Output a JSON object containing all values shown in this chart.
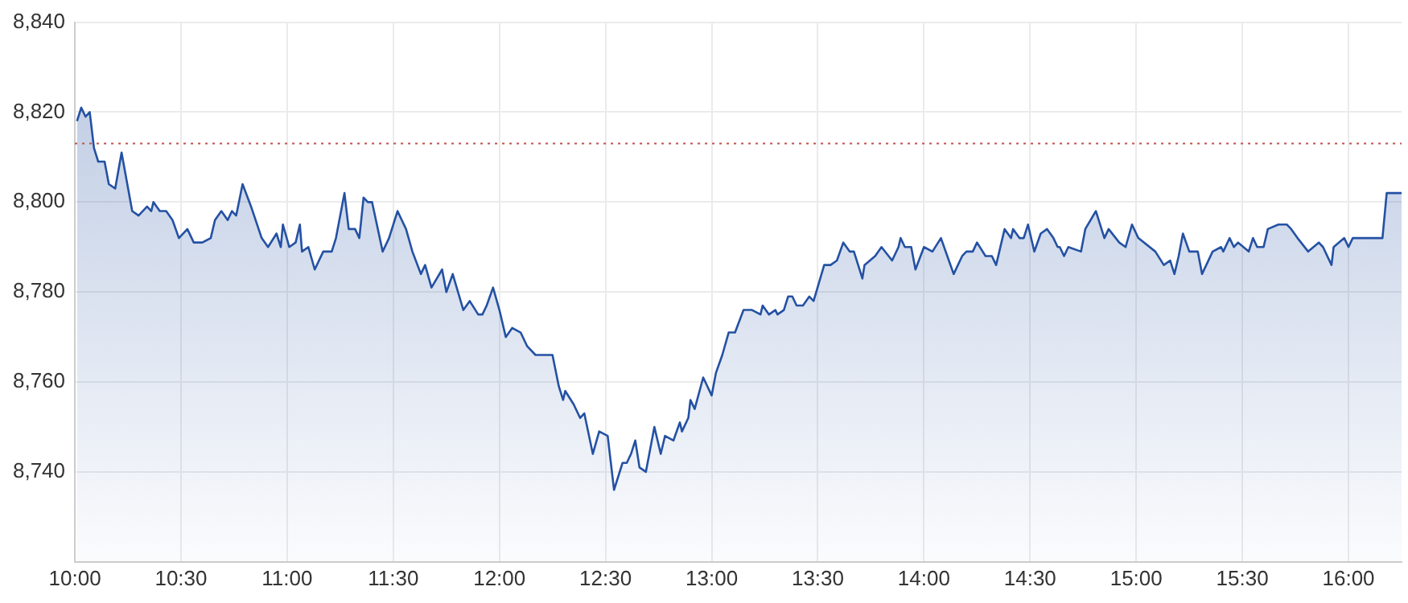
{
  "chart_data": {
    "type": "area",
    "x": [
      10.01,
      10.03,
      10.05,
      10.07,
      10.09,
      10.11,
      10.14,
      10.16,
      10.19,
      10.22,
      10.27,
      10.3,
      10.34,
      10.36,
      10.37,
      10.4,
      10.43,
      10.46,
      10.49,
      10.53,
      10.56,
      10.6,
      10.64,
      10.66,
      10.69,
      10.72,
      10.74,
      10.76,
      10.79,
      10.83,
      10.88,
      10.91,
      10.95,
      10.97,
      10.98,
      11.01,
      11.04,
      11.06,
      11.07,
      11.1,
      11.13,
      11.17,
      11.21,
      11.23,
      11.27,
      11.29,
      11.32,
      11.34,
      11.36,
      11.38,
      11.4,
      11.45,
      11.48,
      11.52,
      11.56,
      11.59,
      11.63,
      11.65,
      11.68,
      11.73,
      11.75,
      11.78,
      11.83,
      11.86,
      11.9,
      11.92,
      11.94,
      11.97,
      12.0,
      12.03,
      12.06,
      12.1,
      12.13,
      12.17,
      12.22,
      12.25,
      12.28,
      12.3,
      12.31,
      12.35,
      12.38,
      12.4,
      12.44,
      12.47,
      12.51,
      12.54,
      12.58,
      12.6,
      12.62,
      12.64,
      12.66,
      12.69,
      12.73,
      12.76,
      12.78,
      12.82,
      12.85,
      12.86,
      12.89,
      12.9,
      12.92,
      12.96,
      13.0,
      13.02,
      13.05,
      13.08,
      13.11,
      13.15,
      13.19,
      13.23,
      13.24,
      13.27,
      13.3,
      13.31,
      13.34,
      13.36,
      13.38,
      13.4,
      13.42,
      13.43,
      13.46,
      13.48,
      13.53,
      13.56,
      13.59,
      13.62,
      13.65,
      13.67,
      13.71,
      13.72,
      13.77,
      13.8,
      13.85,
      13.88,
      13.89,
      13.91,
      13.94,
      13.96,
      14.0,
      14.04,
      14.08,
      14.11,
      14.14,
      14.18,
      14.2,
      14.23,
      14.25,
      14.29,
      14.32,
      14.34,
      14.38,
      14.41,
      14.42,
      14.45,
      14.47,
      14.49,
      14.52,
      14.55,
      14.58,
      14.61,
      14.63,
      14.64,
      14.66,
      14.68,
      14.74,
      14.76,
      14.81,
      14.85,
      14.87,
      14.92,
      14.95,
      14.98,
      15.01,
      15.09,
      15.13,
      15.16,
      15.18,
      15.2,
      15.22,
      15.25,
      15.29,
      15.31,
      15.36,
      15.4,
      15.41,
      15.44,
      15.46,
      15.48,
      15.53,
      15.55,
      15.57,
      15.6,
      15.62,
      15.67,
      15.71,
      15.73,
      15.76,
      15.81,
      15.86,
      15.88,
      15.92,
      15.93,
      15.98,
      16.0,
      16.02,
      16.16,
      16.18,
      16.25
    ],
    "series": [
      {
        "color": "#2451a3",
        "values": [
          8818,
          8821,
          8819,
          8820,
          8812,
          8809,
          8809,
          8804,
          8803,
          8811,
          8798,
          8797,
          8799,
          8798,
          8800,
          8798,
          8798,
          8796,
          8792,
          8794,
          8791,
          8791,
          8792,
          8796,
          8798,
          8796,
          8798,
          8797,
          8804,
          8799,
          8792,
          8790,
          8793,
          8790,
          8795,
          8790,
          8791,
          8795,
          8789,
          8790,
          8785,
          8789,
          8789,
          8792,
          8802,
          8794,
          8794,
          8792,
          8801,
          8800,
          8800,
          8789,
          8792,
          8798,
          8794,
          8789,
          8784,
          8786,
          8781,
          8785,
          8780,
          8784,
          8776,
          8778,
          8775,
          8775,
          8777,
          8781,
          8776,
          8770,
          8772,
          8771,
          8768,
          8766,
          8766,
          8766,
          8759,
          8756,
          8758,
          8755,
          8752,
          8753,
          8744,
          8749,
          8748,
          8736,
          8742,
          8742,
          8744,
          8747,
          8741,
          8740,
          8750,
          8744,
          8748,
          8747,
          8751,
          8749,
          8752,
          8756,
          8754,
          8761,
          8757,
          8762,
          8766,
          8771,
          8771,
          8776,
          8776,
          8775,
          8777,
          8775,
          8776,
          8775,
          8776,
          8779,
          8779,
          8777,
          8777,
          8777,
          8779,
          8778,
          8786,
          8786,
          8787,
          8791,
          8789,
          8789,
          8783,
          8786,
          8788,
          8790,
          8787,
          8790,
          8792,
          8790,
          8790,
          8785,
          8790,
          8789,
          8792,
          8788,
          8784,
          8788,
          8789,
          8789,
          8791,
          8788,
          8788,
          8786,
          8794,
          8792,
          8794,
          8792,
          8792,
          8795,
          8789,
          8793,
          8794,
          8792,
          8790,
          8790,
          8788,
          8790,
          8789,
          8794,
          8798,
          8792,
          8794,
          8791,
          8790,
          8795,
          8792,
          8789,
          8786,
          8787,
          8784,
          8788,
          8793,
          8789,
          8789,
          8784,
          8789,
          8790,
          8789,
          8792,
          8790,
          8791,
          8789,
          8792,
          8790,
          8790,
          8794,
          8795,
          8795,
          8794,
          8792,
          8789,
          8791,
          8790,
          8786,
          8790,
          8792,
          8790,
          8792,
          8792,
          8802,
          8802
        ]
      }
    ],
    "xlim": [
      10,
      16.25
    ],
    "xticks": [
      {
        "value": 10,
        "label": "10:00"
      },
      {
        "value": 10.5,
        "label": "10:30"
      },
      {
        "value": 11,
        "label": "11:00"
      },
      {
        "value": 11.5,
        "label": "11:30"
      },
      {
        "value": 12,
        "label": "12:00"
      },
      {
        "value": 12.5,
        "label": "12:30"
      },
      {
        "value": 13,
        "label": "13:00"
      },
      {
        "value": 13.5,
        "label": "13:30"
      },
      {
        "value": 14,
        "label": "14:00"
      },
      {
        "value": 14.5,
        "label": "14:30"
      },
      {
        "value": 15,
        "label": "15:00"
      },
      {
        "value": 15.5,
        "label": "15:30"
      },
      {
        "value": 16,
        "label": "16:00"
      }
    ],
    "ylim": [
      8720,
      8840
    ],
    "yticks": [
      {
        "value": 8740,
        "label": "8,740"
      },
      {
        "value": 8760,
        "label": "8,760"
      },
      {
        "value": 8780,
        "label": "8,780"
      },
      {
        "value": 8800,
        "label": "8,800"
      },
      {
        "value": 8820,
        "label": "8,820"
      },
      {
        "value": 8840,
        "label": "8,840"
      }
    ],
    "ref_lines": [
      {
        "axis": "y",
        "value": 8813,
        "color": "#c0504d",
        "line_style": "dotted"
      }
    ],
    "grid": true,
    "legend": false,
    "marker": "none",
    "line_style": "solid"
  }
}
